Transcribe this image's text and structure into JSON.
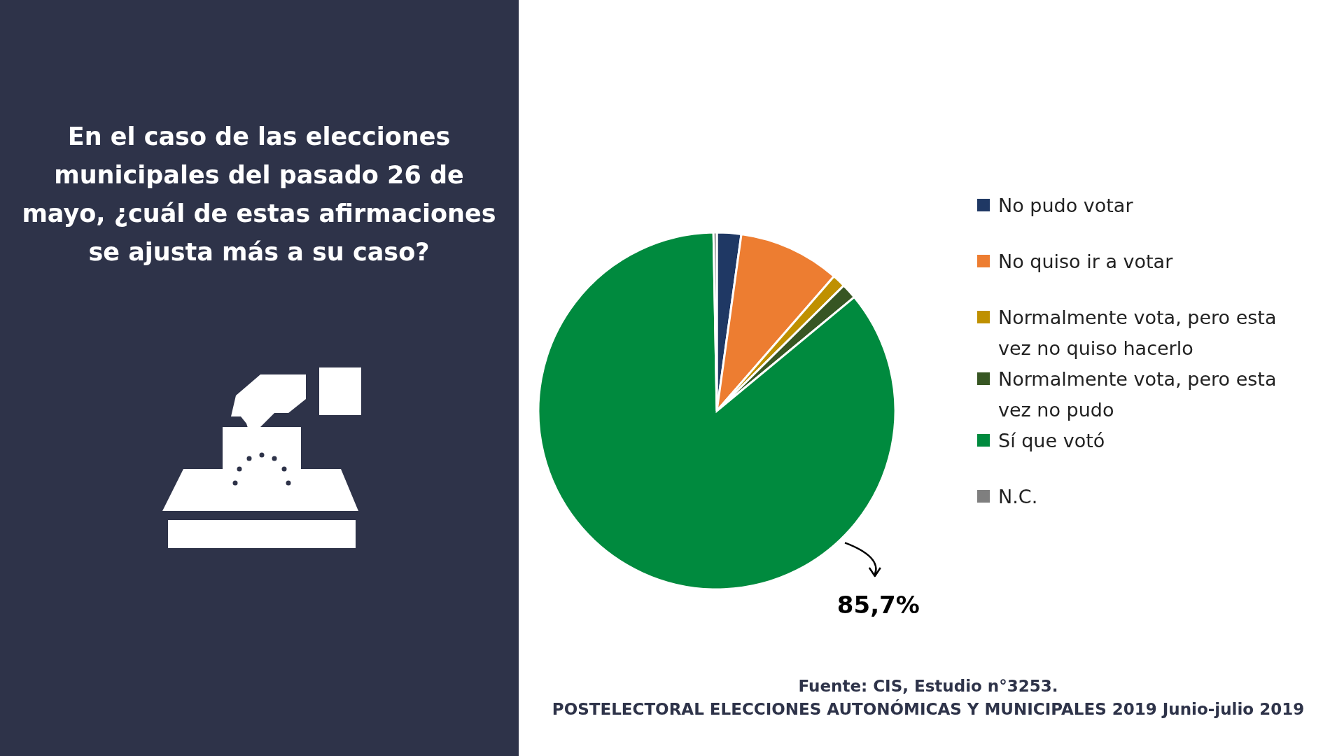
{
  "chart_data": {
    "type": "pie",
    "title": "En el caso de las elecciones municipales del pasado 26 de mayo, ¿cuál de estas afirmaciones se ajusta más a su caso?",
    "categories": [
      "No pudo votar",
      "No quiso ir a votar",
      "Normalmente vota, pero esta vez no quiso hacerlo",
      "Normalmente vota, pero esta vez no pudo",
      "Sí que votó",
      "N.C."
    ],
    "values": [
      2.2,
      9.2,
      1.2,
      1.4,
      85.7,
      0.3
    ],
    "colors": [
      "#1f3864",
      "#ed7d31",
      "#bf9000",
      "#375623",
      "#008a3e",
      "#7f7f7f"
    ],
    "value_labels": [
      null,
      null,
      null,
      null,
      "85,7%",
      null
    ],
    "legend": "right",
    "annotations": [
      "Fuente: CIS, Estudio n°3253.",
      "POSTELECTORAL ELECCIONES AUTONÓMICAS Y MUNICIPALES 2019 Junio-julio 2019"
    ]
  }
}
